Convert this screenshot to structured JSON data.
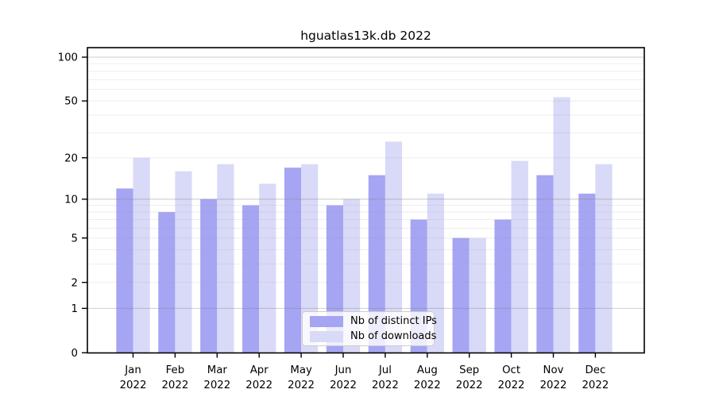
{
  "figure": {
    "background": "#ffffff"
  },
  "chart_data": {
    "type": "bar",
    "title": "hguatlas13k.db 2022",
    "categories": [
      "Jan",
      "Feb",
      "Mar",
      "Apr",
      "May",
      "Jun",
      "Jul",
      "Aug",
      "Sep",
      "Oct",
      "Nov",
      "Dec"
    ],
    "x_tick_year": "2022",
    "series": [
      {
        "name": "Nb of distinct IPs",
        "color": "#a5a5f3",
        "values": [
          12,
          8,
          10,
          9,
          17,
          9,
          15,
          7,
          5,
          7,
          15,
          11
        ]
      },
      {
        "name": "Nb of downloads",
        "color": "#d9d9f8",
        "values": [
          20,
          16,
          18,
          13,
          18,
          10,
          26,
          11,
          5,
          19,
          53,
          18
        ]
      }
    ],
    "xlabel": "",
    "ylabel": "",
    "yscale": "log1p",
    "ylim": [
      0,
      116
    ],
    "yticks": [
      0,
      1,
      2,
      5,
      10,
      20,
      50,
      100
    ],
    "ytick_labels": [
      "0",
      "1",
      "2",
      "5",
      "10",
      "20",
      "50",
      "100"
    ],
    "grid_major_values": [
      1,
      10,
      100
    ],
    "grid_minor_values": [
      2,
      3,
      4,
      5,
      6,
      7,
      8,
      9,
      20,
      30,
      40,
      50,
      60,
      70,
      80,
      90
    ],
    "grid": "on, both, drawn above bars",
    "legend_position": "lower center"
  },
  "colors": {
    "axis_frame": "#000000",
    "tick_label": "#000000",
    "grid_major": "rgba(130,130,130,0.40)",
    "grid_minor": "rgba(160,160,160,0.18)",
    "legend_border": "#cccccc"
  }
}
